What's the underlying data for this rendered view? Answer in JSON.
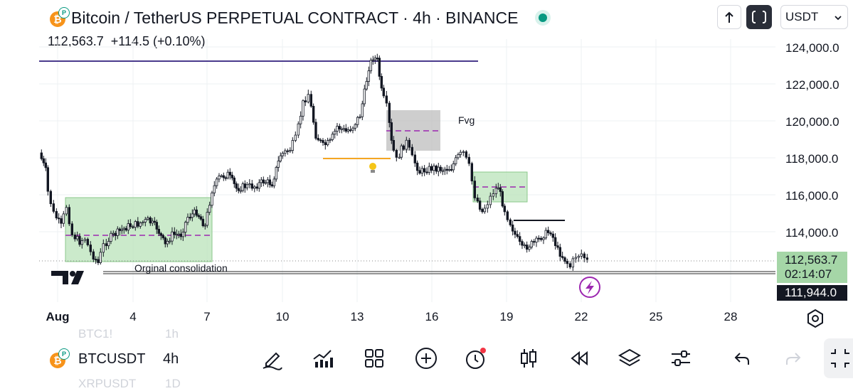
{
  "header": {
    "title": "Bitcoin / TetherUS PERPETUAL CONTRACT · 4h · BINANCE",
    "coin_letter": "₿",
    "price_last": "112,563.7",
    "price_change": "+114.5 (+0.10%)",
    "currency": "USDT",
    "live_status_color": "#089981",
    "icons": [
      "up-arrow-icon",
      "fullscreen-icon",
      "chevron-down-icon"
    ]
  },
  "chart": {
    "y_ticks": [
      "124,000.0",
      "122,000.0",
      "120,000.0",
      "118,000.0",
      "116,000.0",
      "114,000.0"
    ],
    "x_ticks": [
      "Aug",
      "4",
      "7",
      "10",
      "13",
      "16",
      "19",
      "22",
      "25",
      "28"
    ],
    "current_price_tag": "112,563.7",
    "countdown_tag": "02:14:07",
    "support_price_tag": "111,944.0",
    "annotations": {
      "fvg_label": "Fvg",
      "consolidation_label": "Orginal consolidation"
    },
    "colors": {
      "up_candle": "#ffffff",
      "down_candle": "#131722",
      "zone_green": "#b9e3b9",
      "zone_gray": "#bdbdbd",
      "resistance_line": "#4a3a8c",
      "orange_line": "#f5a623",
      "dashed_purple": "#9c27b0",
      "price_tag_green": "#a5d6a7"
    }
  },
  "footer": {
    "symbol": "BTCUSDT",
    "interval": "4h",
    "ghost_symbol_above": "BTC1!",
    "ghost_interval_above": "1h",
    "ghost_symbol_below": "XRPUSDT",
    "ghost_interval_below": "1D",
    "tools": [
      "pencil-icon",
      "indicators-icon",
      "grid-icon",
      "add-icon",
      "alert-clock-icon",
      "candles-icon",
      "replay-icon",
      "layers-icon",
      "settings-sliders-icon",
      "undo-icon",
      "redo-icon",
      "expand-icon"
    ]
  }
}
